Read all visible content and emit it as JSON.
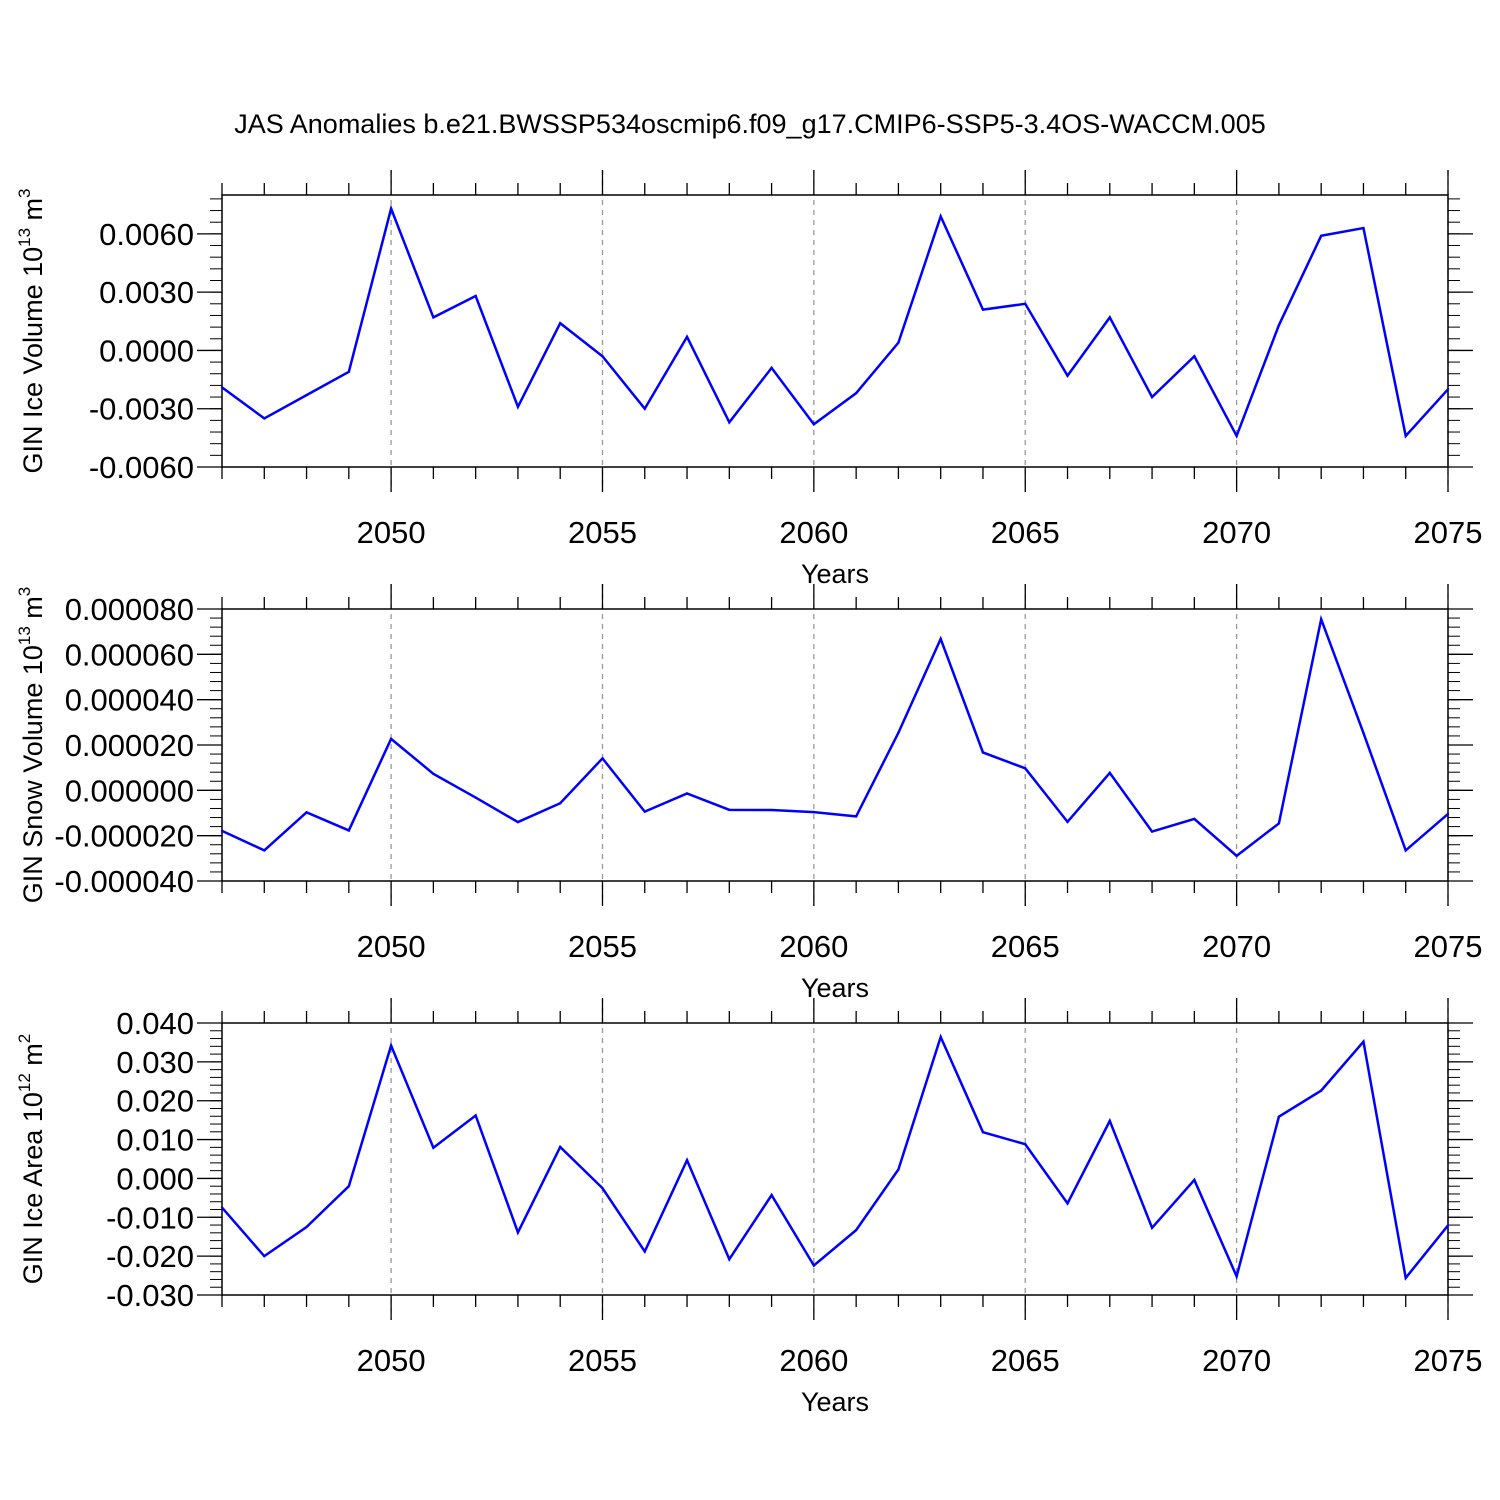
{
  "title": "JAS Anomalies b.e21.BWSSP534oscmip6.f09_g17.CMIP6-SSP5-3.4OS-WACCM.005",
  "colors": {
    "line": "#0000ff",
    "axis": "#000000",
    "grid": "#999999"
  },
  "chart_data": [
    {
      "type": "line",
      "ylabel_main": "GIN Ice Volume 10",
      "ylabel_sup": "13",
      "ylabel_tail": " m",
      "ylabel_sup2": "3",
      "xlabel": "Years",
      "xlim": [
        2046,
        2075
      ],
      "ylim": [
        -0.006,
        0.008
      ],
      "yticks": [
        -0.006,
        -0.003,
        0.0,
        0.003,
        0.006
      ],
      "ytick_labels": [
        "-0.0060",
        "-0.0030",
        "0.0000",
        "0.0030",
        "0.0060"
      ],
      "xticks": [
        2050,
        2055,
        2060,
        2065,
        2070,
        2075
      ],
      "xtick_labels": [
        "2050",
        "2055",
        "2060",
        "2065",
        "2070",
        "2075"
      ],
      "x": [
        2046,
        2047,
        2048,
        2049,
        2050,
        2051,
        2052,
        2053,
        2054,
        2055,
        2056,
        2057,
        2058,
        2059,
        2060,
        2061,
        2062,
        2063,
        2064,
        2065,
        2066,
        2067,
        2068,
        2069,
        2070,
        2071,
        2072,
        2073,
        2074,
        2075
      ],
      "y": [
        -0.0019,
        -0.0035,
        -0.0023,
        -0.0011,
        0.0073,
        0.0017,
        0.0028,
        -0.0029,
        0.0014,
        -0.0003,
        -0.003,
        0.0007,
        -0.0037,
        -0.0009,
        -0.0038,
        -0.0022,
        0.0004,
        0.0069,
        0.0021,
        0.0024,
        -0.0013,
        0.0017,
        -0.0024,
        -0.0003,
        -0.0044,
        0.0013,
        0.0059,
        0.0063,
        -0.0044,
        -0.002
      ]
    },
    {
      "type": "line",
      "ylabel_main": "GIN Snow Volume 10",
      "ylabel_sup": "13",
      "ylabel_tail": " m",
      "ylabel_sup2": "3",
      "xlabel": "Years",
      "xlim": [
        2046,
        2075
      ],
      "ylim": [
        -4e-05,
        8e-05
      ],
      "yticks": [
        -4e-05,
        -2e-05,
        0.0,
        2e-05,
        4e-05,
        6e-05,
        8e-05
      ],
      "ytick_labels": [
        "-0.000040",
        "-0.000020",
        "0.000000",
        "0.000020",
        "0.000040",
        "0.000060",
        "0.000080"
      ],
      "xticks": [
        2050,
        2055,
        2060,
        2065,
        2070,
        2075
      ],
      "xtick_labels": [
        "2050",
        "2055",
        "2060",
        "2065",
        "2070",
        "2075"
      ],
      "x": [
        2046,
        2047,
        2048,
        2049,
        2050,
        2051,
        2052,
        2053,
        2054,
        2055,
        2056,
        2057,
        2058,
        2059,
        2060,
        2061,
        2062,
        2063,
        2064,
        2065,
        2066,
        2067,
        2068,
        2069,
        2070,
        2071,
        2072,
        2073,
        2074,
        2075
      ],
      "y": [
        -1.79e-05,
        -2.65e-05,
        -9.7e-06,
        -1.77e-05,
        2.27e-05,
        7.3e-06,
        -3.2e-06,
        -1.4e-05,
        -5.7e-06,
        1.41e-05,
        -9.4e-06,
        -1.4e-06,
        -8.6e-06,
        -8.7e-06,
        -9.6e-06,
        -1.15e-05,
        2.54e-05,
        6.68e-05,
        1.67e-05,
        9.7e-06,
        -1.39e-05,
        7.7e-06,
        -1.82e-05,
        -1.26e-05,
        -2.89e-05,
        -1.46e-05,
        7.55e-05,
        2.53e-05,
        -2.65e-05,
        -1.04e-05
      ]
    },
    {
      "type": "line",
      "ylabel_main": "GIN Ice Area 10",
      "ylabel_sup": "12",
      "ylabel_tail": " m",
      "ylabel_sup2": "2",
      "xlabel": "Years",
      "xlim": [
        2046,
        2075
      ],
      "ylim": [
        -0.03,
        0.04
      ],
      "yticks": [
        -0.03,
        -0.02,
        -0.01,
        0.0,
        0.01,
        0.02,
        0.03,
        0.04
      ],
      "ytick_labels": [
        "-0.030",
        "-0.020",
        "-0.010",
        "0.000",
        "0.010",
        "0.020",
        "0.030",
        "0.040"
      ],
      "xticks": [
        2050,
        2055,
        2060,
        2065,
        2070,
        2075
      ],
      "xtick_labels": [
        "2050",
        "2055",
        "2060",
        "2065",
        "2070",
        "2075"
      ],
      "x": [
        2046,
        2047,
        2048,
        2049,
        2050,
        2051,
        2052,
        2053,
        2054,
        2055,
        2056,
        2057,
        2058,
        2059,
        2060,
        2061,
        2062,
        2063,
        2064,
        2065,
        2066,
        2067,
        2068,
        2069,
        2070,
        2071,
        2072,
        2073,
        2074,
        2075
      ],
      "y": [
        -0.0075,
        -0.02,
        -0.0125,
        -0.002,
        0.0342,
        0.0079,
        0.0162,
        -0.0139,
        0.0081,
        -0.0025,
        -0.0188,
        0.0047,
        -0.0208,
        -0.0043,
        -0.0224,
        -0.0133,
        0.0023,
        0.0364,
        0.0119,
        0.0088,
        -0.0064,
        0.0148,
        -0.0127,
        -0.0004,
        -0.0252,
        0.0159,
        0.0226,
        0.0352,
        -0.0256,
        -0.0121
      ]
    }
  ]
}
